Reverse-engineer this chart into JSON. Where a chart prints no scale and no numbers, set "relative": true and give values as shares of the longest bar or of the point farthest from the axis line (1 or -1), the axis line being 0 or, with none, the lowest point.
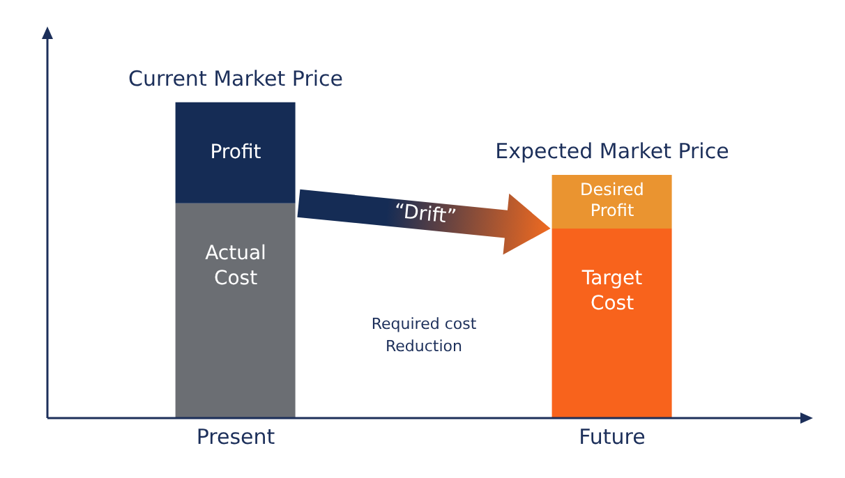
{
  "chart_data": {
    "type": "bar",
    "stacked": true,
    "relative": true,
    "categories": [
      "Present",
      "Future"
    ],
    "series": [
      {
        "colors": [
          "#6b6e73",
          "#f8631c"
        ],
        "values": [
          0.68,
          0.6
        ]
      },
      {
        "colors": [
          "#152c55",
          "#ea9430"
        ],
        "values": [
          0.32,
          0.17
        ]
      }
    ],
    "annotations": [
      {
        "text": "Current Market Price",
        "x": "Present",
        "y": 1
      },
      {
        "text": "Expected Market Price",
        "x": "Future",
        "y": 0.77
      },
      "Profit",
      "Actual Cost",
      "Desired Profit",
      "Target Cost",
      "“Drift”",
      "Required cost Reduction"
    ],
    "legend": false,
    "grid": false
  }
}
